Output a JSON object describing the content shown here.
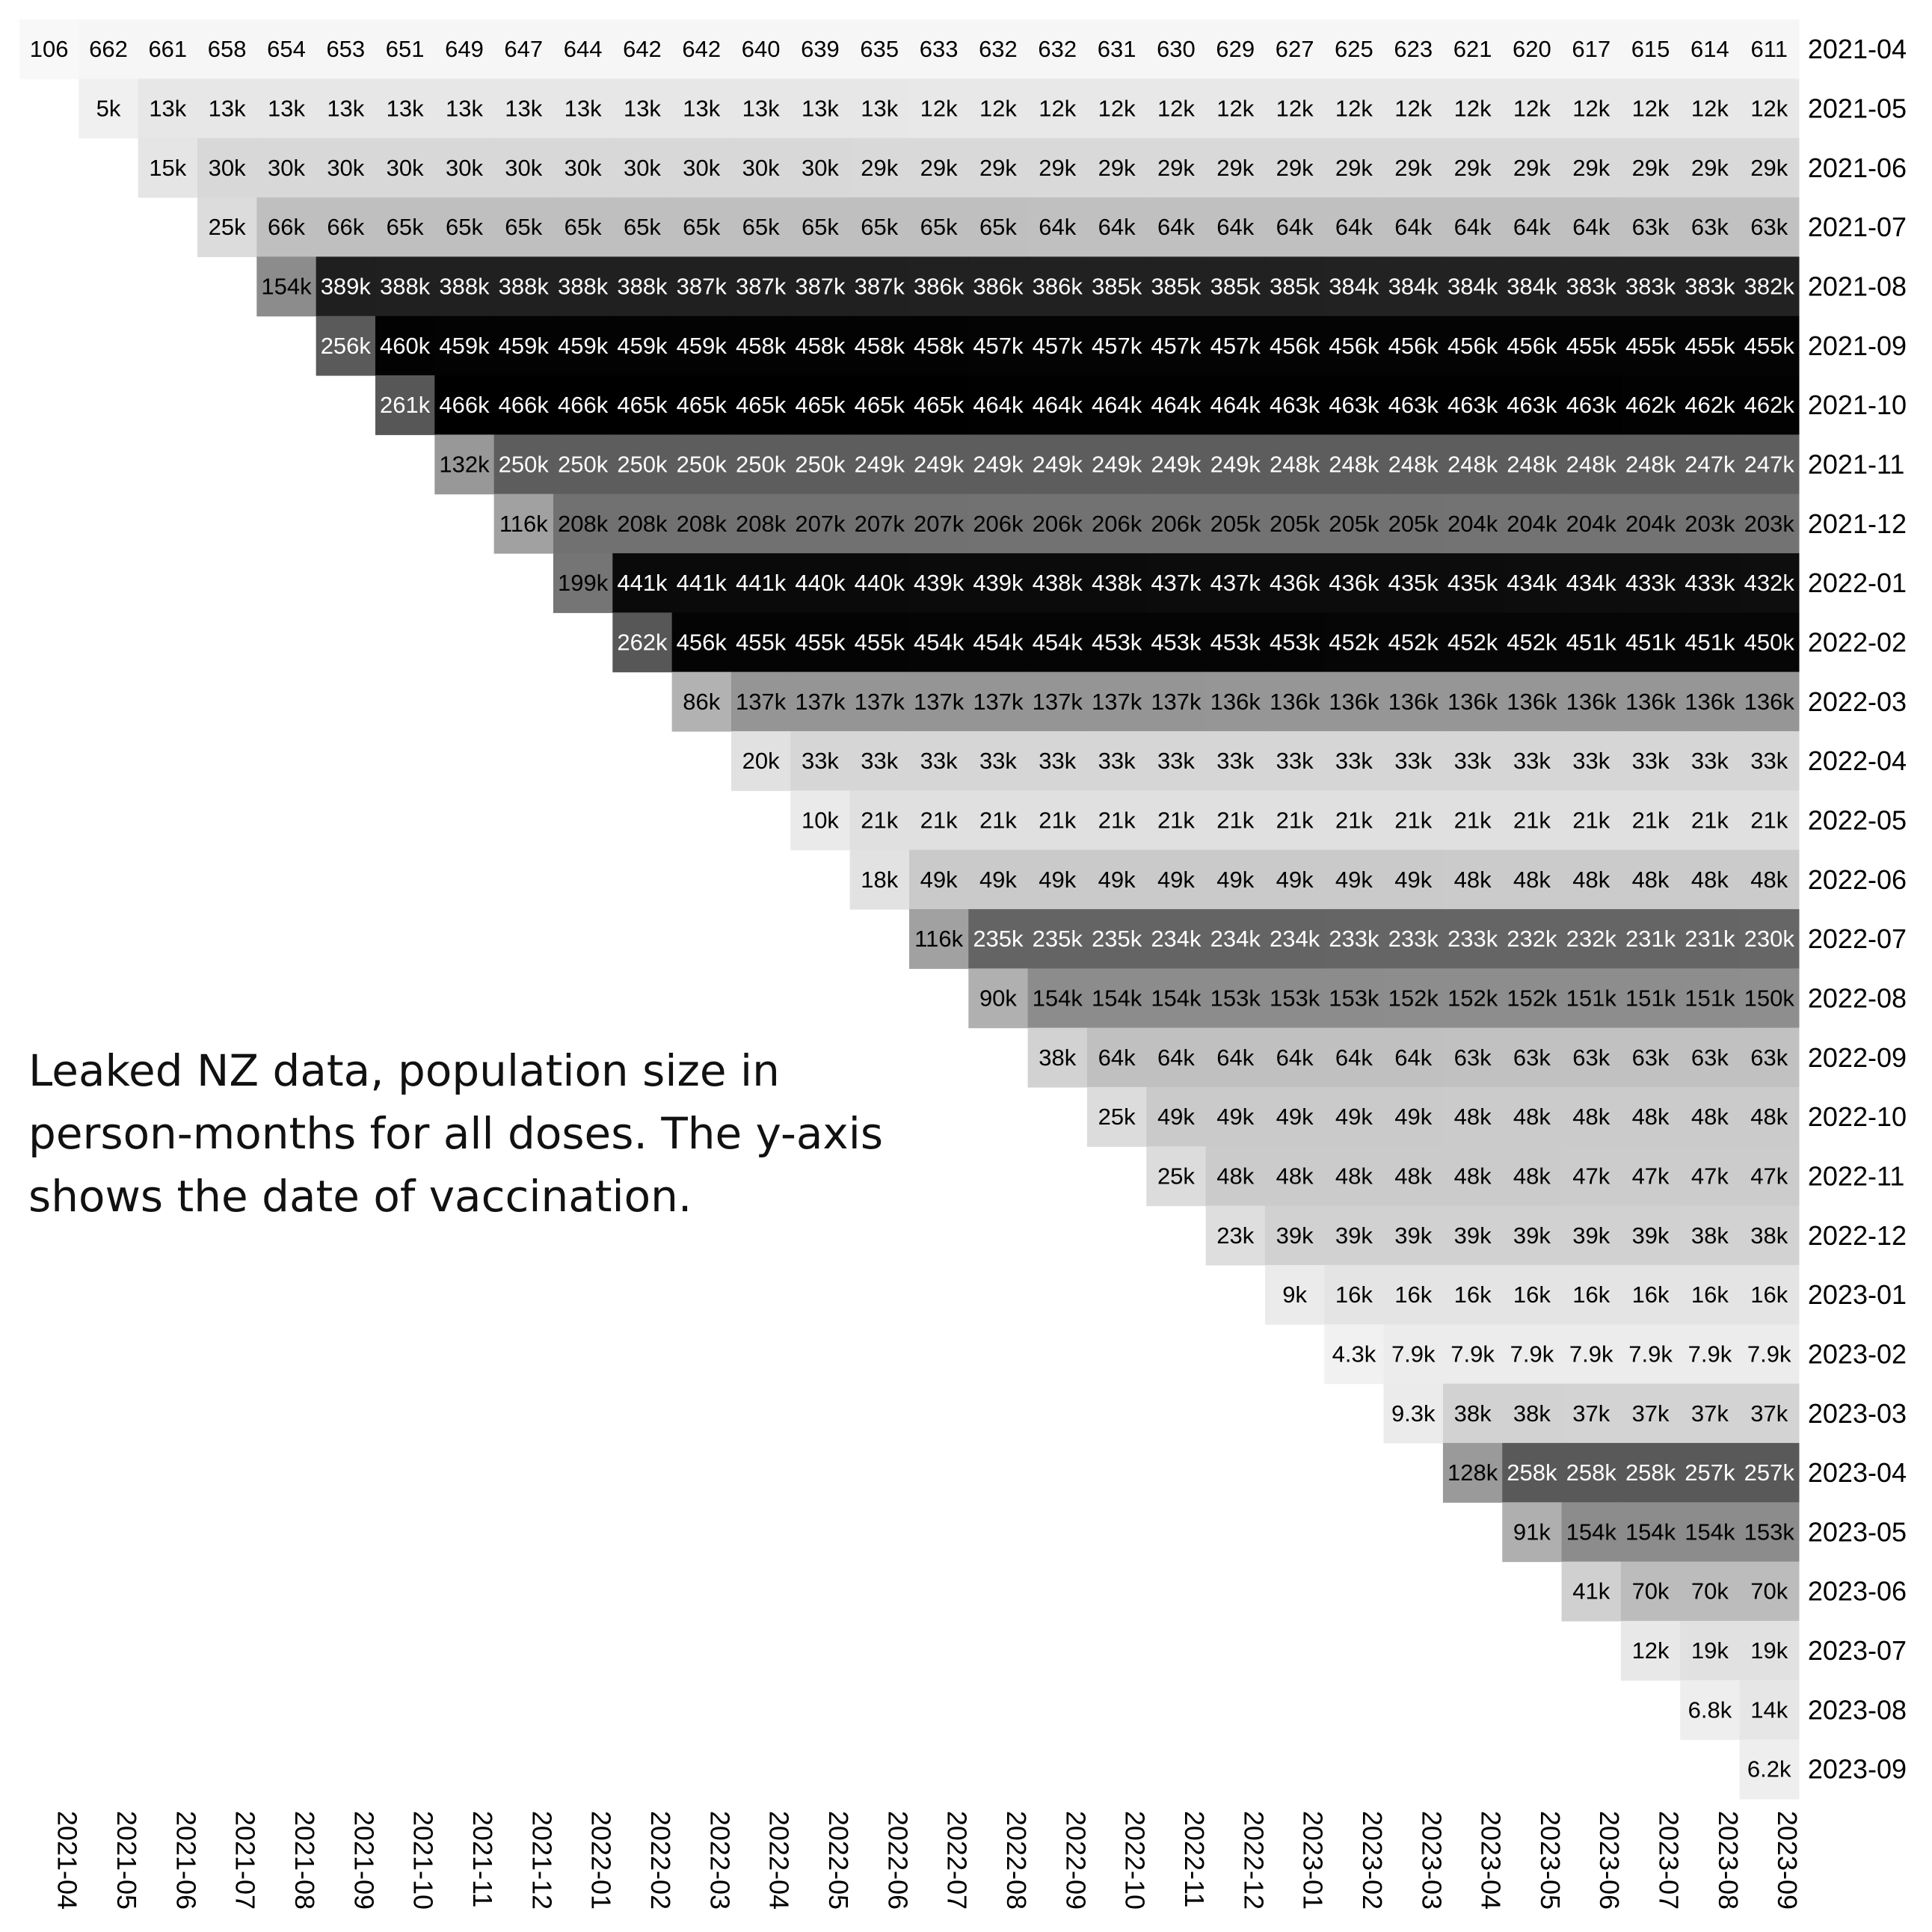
{
  "caption": "Leaked NZ data, population size in person-months for all doses. The y-axis shows the date of vaccination.",
  "chart_data": {
    "type": "heatmap",
    "title": "",
    "xlabel": "",
    "ylabel": "",
    "colormap": "greys",
    "color_range": [
      0,
      466000
    ],
    "columns": [
      "2021-04",
      "2021-05",
      "2021-06",
      "2021-07",
      "2021-08",
      "2021-09",
      "2021-10",
      "2021-11",
      "2021-12",
      "2022-01",
      "2022-02",
      "2022-03",
      "2022-04",
      "2022-05",
      "2022-06",
      "2022-07",
      "2022-08",
      "2022-09",
      "2022-10",
      "2022-11",
      "2022-12",
      "2023-01",
      "2023-02",
      "2023-03",
      "2023-04",
      "2023-05",
      "2023-06",
      "2023-07",
      "2023-08",
      "2023-09"
    ],
    "rows": [
      {
        "label": "2021-04",
        "values": [
          "106",
          "662",
          "661",
          "658",
          "654",
          "653",
          "651",
          "649",
          "647",
          "644",
          "642",
          "642",
          "640",
          "639",
          "635",
          "633",
          "632",
          "632",
          "631",
          "630",
          "629",
          "627",
          "625",
          "623",
          "621",
          "620",
          "617",
          "615",
          "614",
          "611"
        ]
      },
      {
        "label": "2021-05",
        "values": [
          "5k",
          "13k",
          "13k",
          "13k",
          "13k",
          "13k",
          "13k",
          "13k",
          "13k",
          "13k",
          "13k",
          "13k",
          "13k",
          "13k",
          "12k",
          "12k",
          "12k",
          "12k",
          "12k",
          "12k",
          "12k",
          "12k",
          "12k",
          "12k",
          "12k",
          "12k",
          "12k",
          "12k",
          "12k"
        ]
      },
      {
        "label": "2021-06",
        "values": [
          "15k",
          "30k",
          "30k",
          "30k",
          "30k",
          "30k",
          "30k",
          "30k",
          "30k",
          "30k",
          "30k",
          "30k",
          "29k",
          "29k",
          "29k",
          "29k",
          "29k",
          "29k",
          "29k",
          "29k",
          "29k",
          "29k",
          "29k",
          "29k",
          "29k",
          "29k",
          "29k",
          "29k"
        ]
      },
      {
        "label": "2021-07",
        "values": [
          "25k",
          "66k",
          "66k",
          "65k",
          "65k",
          "65k",
          "65k",
          "65k",
          "65k",
          "65k",
          "65k",
          "65k",
          "65k",
          "65k",
          "64k",
          "64k",
          "64k",
          "64k",
          "64k",
          "64k",
          "64k",
          "64k",
          "64k",
          "64k",
          "63k",
          "63k",
          "63k"
        ]
      },
      {
        "label": "2021-08",
        "values": [
          "154k",
          "389k",
          "388k",
          "388k",
          "388k",
          "388k",
          "388k",
          "387k",
          "387k",
          "387k",
          "387k",
          "386k",
          "386k",
          "386k",
          "385k",
          "385k",
          "385k",
          "385k",
          "384k",
          "384k",
          "384k",
          "384k",
          "383k",
          "383k",
          "383k",
          "382k"
        ]
      },
      {
        "label": "2021-09",
        "values": [
          "256k",
          "460k",
          "459k",
          "459k",
          "459k",
          "459k",
          "459k",
          "458k",
          "458k",
          "458k",
          "458k",
          "457k",
          "457k",
          "457k",
          "457k",
          "457k",
          "456k",
          "456k",
          "456k",
          "456k",
          "456k",
          "455k",
          "455k",
          "455k",
          "455k"
        ]
      },
      {
        "label": "2021-10",
        "values": [
          "261k",
          "466k",
          "466k",
          "466k",
          "465k",
          "465k",
          "465k",
          "465k",
          "465k",
          "465k",
          "464k",
          "464k",
          "464k",
          "464k",
          "464k",
          "463k",
          "463k",
          "463k",
          "463k",
          "463k",
          "463k",
          "462k",
          "462k",
          "462k"
        ]
      },
      {
        "label": "2021-11",
        "values": [
          "132k",
          "250k",
          "250k",
          "250k",
          "250k",
          "250k",
          "250k",
          "249k",
          "249k",
          "249k",
          "249k",
          "249k",
          "249k",
          "249k",
          "248k",
          "248k",
          "248k",
          "248k",
          "248k",
          "248k",
          "248k",
          "247k",
          "247k"
        ]
      },
      {
        "label": "2021-12",
        "values": [
          "116k",
          "208k",
          "208k",
          "208k",
          "208k",
          "207k",
          "207k",
          "207k",
          "206k",
          "206k",
          "206k",
          "206k",
          "205k",
          "205k",
          "205k",
          "205k",
          "204k",
          "204k",
          "204k",
          "204k",
          "203k",
          "203k"
        ]
      },
      {
        "label": "2022-01",
        "values": [
          "199k",
          "441k",
          "441k",
          "441k",
          "440k",
          "440k",
          "439k",
          "439k",
          "438k",
          "438k",
          "437k",
          "437k",
          "436k",
          "436k",
          "435k",
          "435k",
          "434k",
          "434k",
          "433k",
          "433k",
          "432k"
        ]
      },
      {
        "label": "2022-02",
        "values": [
          "262k",
          "456k",
          "455k",
          "455k",
          "455k",
          "454k",
          "454k",
          "454k",
          "453k",
          "453k",
          "453k",
          "453k",
          "452k",
          "452k",
          "452k",
          "452k",
          "451k",
          "451k",
          "451k",
          "450k"
        ]
      },
      {
        "label": "2022-03",
        "values": [
          "86k",
          "137k",
          "137k",
          "137k",
          "137k",
          "137k",
          "137k",
          "137k",
          "137k",
          "136k",
          "136k",
          "136k",
          "136k",
          "136k",
          "136k",
          "136k",
          "136k",
          "136k",
          "136k"
        ]
      },
      {
        "label": "2022-04",
        "values": [
          "20k",
          "33k",
          "33k",
          "33k",
          "33k",
          "33k",
          "33k",
          "33k",
          "33k",
          "33k",
          "33k",
          "33k",
          "33k",
          "33k",
          "33k",
          "33k",
          "33k",
          "33k"
        ]
      },
      {
        "label": "2022-05",
        "values": [
          "10k",
          "21k",
          "21k",
          "21k",
          "21k",
          "21k",
          "21k",
          "21k",
          "21k",
          "21k",
          "21k",
          "21k",
          "21k",
          "21k",
          "21k",
          "21k",
          "21k"
        ]
      },
      {
        "label": "2022-06",
        "values": [
          "18k",
          "49k",
          "49k",
          "49k",
          "49k",
          "49k",
          "49k",
          "49k",
          "49k",
          "49k",
          "48k",
          "48k",
          "48k",
          "48k",
          "48k",
          "48k"
        ]
      },
      {
        "label": "2022-07",
        "values": [
          "116k",
          "235k",
          "235k",
          "235k",
          "234k",
          "234k",
          "234k",
          "233k",
          "233k",
          "233k",
          "232k",
          "232k",
          "231k",
          "231k",
          "230k"
        ]
      },
      {
        "label": "2022-08",
        "values": [
          "90k",
          "154k",
          "154k",
          "154k",
          "153k",
          "153k",
          "153k",
          "152k",
          "152k",
          "152k",
          "151k",
          "151k",
          "151k",
          "150k"
        ]
      },
      {
        "label": "2022-09",
        "values": [
          "38k",
          "64k",
          "64k",
          "64k",
          "64k",
          "64k",
          "64k",
          "63k",
          "63k",
          "63k",
          "63k",
          "63k",
          "63k"
        ]
      },
      {
        "label": "2022-10",
        "values": [
          "25k",
          "49k",
          "49k",
          "49k",
          "49k",
          "49k",
          "48k",
          "48k",
          "48k",
          "48k",
          "48k",
          "48k"
        ]
      },
      {
        "label": "2022-11",
        "values": [
          "25k",
          "48k",
          "48k",
          "48k",
          "48k",
          "48k",
          "48k",
          "47k",
          "47k",
          "47k",
          "47k"
        ]
      },
      {
        "label": "2022-12",
        "values": [
          "23k",
          "39k",
          "39k",
          "39k",
          "39k",
          "39k",
          "39k",
          "39k",
          "38k",
          "38k"
        ]
      },
      {
        "label": "2023-01",
        "values": [
          "9k",
          "16k",
          "16k",
          "16k",
          "16k",
          "16k",
          "16k",
          "16k",
          "16k"
        ]
      },
      {
        "label": "2023-02",
        "values": [
          "4.3k",
          "7.9k",
          "7.9k",
          "7.9k",
          "7.9k",
          "7.9k",
          "7.9k",
          "7.9k"
        ]
      },
      {
        "label": "2023-03",
        "values": [
          "9.3k",
          "38k",
          "38k",
          "37k",
          "37k",
          "37k",
          "37k"
        ]
      },
      {
        "label": "2023-04",
        "values": [
          "128k",
          "258k",
          "258k",
          "258k",
          "257k",
          "257k"
        ]
      },
      {
        "label": "2023-05",
        "values": [
          "91k",
          "154k",
          "154k",
          "154k",
          "153k"
        ]
      },
      {
        "label": "2023-06",
        "values": [
          "41k",
          "70k",
          "70k",
          "70k"
        ]
      },
      {
        "label": "2023-07",
        "values": [
          "12k",
          "19k",
          "19k"
        ]
      },
      {
        "label": "2023-08",
        "values": [
          "6.8k",
          "14k"
        ]
      },
      {
        "label": "2023-09",
        "values": [
          "6.2k"
        ]
      }
    ]
  }
}
